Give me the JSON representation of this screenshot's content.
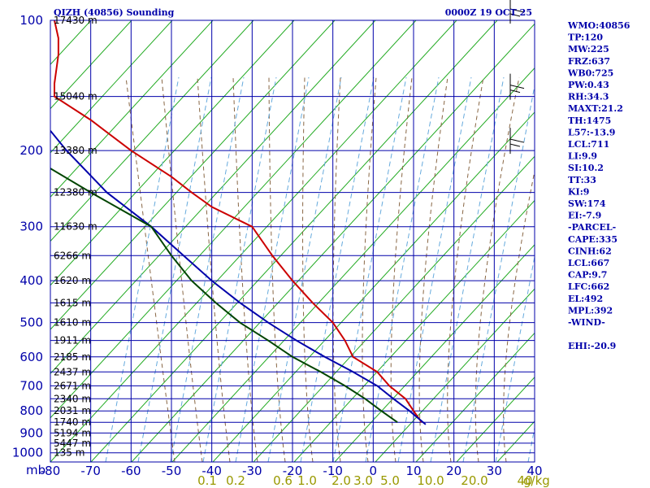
{
  "chart_data": {
    "type": "line",
    "subtype": "skew-t log-p sounding",
    "title": "QIZH (40856) Sounding",
    "datetime": "0000Z 19 OCT 25",
    "pressure_unit": "mb",
    "mixing_ratio_unit": "g/kg",
    "pressure_ticks": [
      100,
      200,
      300,
      400,
      500,
      600,
      700,
      800,
      900,
      1000
    ],
    "temperature_ticks": [
      -80,
      -70,
      -60,
      -50,
      -40,
      -30,
      -20,
      -10,
      0,
      10,
      20,
      30,
      40
    ],
    "mixing_ratio_ticks": [
      "0.1",
      "0.2",
      "0.6",
      "1.0",
      "2.0",
      "3.0",
      "5.0",
      "10.0",
      "20.0",
      "40"
    ],
    "plim": [
      100,
      1050
    ],
    "xlim": [
      -80,
      40
    ],
    "height_labels": [
      {
        "p": 100,
        "label": "17430 m"
      },
      {
        "p": 150,
        "label": "15040 m"
      },
      {
        "p": 200,
        "label": "13380 m"
      },
      {
        "p": 250,
        "label": "12380 m"
      },
      {
        "p": 300,
        "label": "11630 m"
      },
      {
        "p": 350,
        "label": "6266 m"
      },
      {
        "p": 400,
        "label": "1620 m"
      },
      {
        "p": 450,
        "label": "1615 m"
      },
      {
        "p": 500,
        "label": "1610 m"
      },
      {
        "p": 550,
        "label": "1911 m"
      },
      {
        "p": 600,
        "label": "2185 m"
      },
      {
        "p": 650,
        "label": "2437 m"
      },
      {
        "p": 700,
        "label": "2671 m"
      },
      {
        "p": 750,
        "label": "2340 m"
      },
      {
        "p": 800,
        "label": "2031 m"
      },
      {
        "p": 850,
        "label": "1740 m"
      },
      {
        "p": 900,
        "label": "5194 m"
      },
      {
        "p": 950,
        "label": "5447 m"
      },
      {
        "p": 1000,
        "label": "135 m"
      }
    ],
    "series": [
      {
        "color": "#cc0000",
        "points": [
          [
            100,
            -79
          ],
          [
            110,
            -78
          ],
          [
            120,
            -78
          ],
          [
            140,
            -79
          ],
          [
            150,
            -79
          ],
          [
            170,
            -70
          ],
          [
            200,
            -60
          ],
          [
            230,
            -50
          ],
          [
            250,
            -45
          ],
          [
            270,
            -40
          ],
          [
            300,
            -30
          ],
          [
            350,
            -25
          ],
          [
            400,
            -20
          ],
          [
            450,
            -15
          ],
          [
            500,
            -10
          ],
          [
            550,
            -7
          ],
          [
            600,
            -5
          ],
          [
            650,
            1
          ],
          [
            700,
            4
          ],
          [
            750,
            8
          ],
          [
            800,
            10
          ],
          [
            850,
            12
          ]
        ]
      },
      {
        "color": "#0000aa",
        "points": [
          [
            180,
            -80
          ],
          [
            200,
            -76
          ],
          [
            250,
            -66
          ],
          [
            300,
            -55
          ],
          [
            350,
            -47
          ],
          [
            400,
            -40
          ],
          [
            450,
            -33
          ],
          [
            500,
            -26
          ],
          [
            550,
            -19
          ],
          [
            600,
            -12
          ],
          [
            650,
            -5
          ],
          [
            700,
            1
          ],
          [
            750,
            5
          ],
          [
            800,
            9
          ],
          [
            860,
            13
          ]
        ]
      },
      {
        "color": "#004400",
        "points": [
          [
            220,
            -80
          ],
          [
            250,
            -70
          ],
          [
            300,
            -55
          ],
          [
            350,
            -50
          ],
          [
            400,
            -45
          ],
          [
            450,
            -39
          ],
          [
            500,
            -33
          ],
          [
            550,
            -26
          ],
          [
            600,
            -20
          ],
          [
            650,
            -13
          ],
          [
            700,
            -7
          ],
          [
            750,
            -2
          ],
          [
            800,
            2
          ],
          [
            850,
            6
          ]
        ]
      }
    ],
    "winds": [
      {
        "p": 100,
        "label": "wind barb"
      },
      {
        "p": 150,
        "label": "wind barb"
      },
      {
        "p": 200,
        "label": "wind barb"
      }
    ],
    "indices": [
      "WMO:40856",
      "TP:120",
      "MW:225",
      "FRZ:637",
      "WB0:725",
      "PW:0.43",
      "RH:34.3",
      "MAXT:21.2",
      "TH:1475",
      "L57:-13.9",
      "LCL:711",
      "LI:9.9",
      "SI:10.2",
      "TT:33",
      "KI:9",
      "SW:174",
      "EI:-7.9",
      "-PARCEL-",
      "CAPE:335",
      "CINH:62",
      "LCL:667",
      "CAP:9.7",
      "LFC:662",
      "EL:492",
      "MPL:392",
      "-WIND-",
      "",
      "EHI:-20.9"
    ]
  }
}
